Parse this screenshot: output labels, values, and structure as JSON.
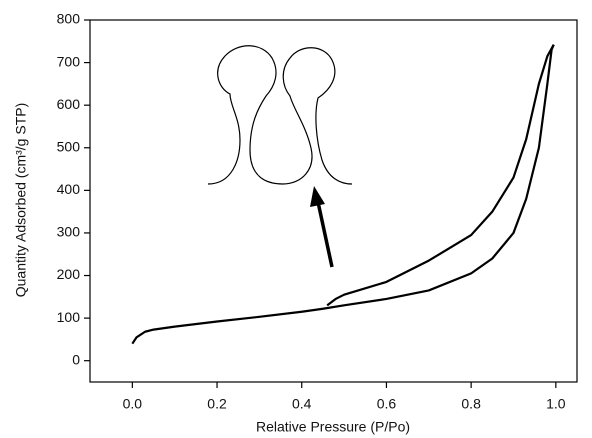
{
  "chart_data": {
    "type": "line",
    "xlabel": "Relative Pressure (P/Po)",
    "ylabel": "Quantity Adsorbed (cm³/g STP)",
    "xlim": [
      -0.1,
      1.05
    ],
    "ylim": [
      -50,
      800
    ],
    "xticks": [
      {
        "value": 0,
        "label": "0.0"
      },
      0.2,
      0.4,
      0.6,
      0.8,
      {
        "value": 1,
        "label": "1.0"
      }
    ],
    "yticks": [
      0,
      100,
      200,
      300,
      400,
      500,
      600,
      700,
      800
    ],
    "series": [
      {
        "color": "#000000",
        "x": [
          0.0,
          0.01,
          0.03,
          0.05,
          0.1,
          0.2,
          0.3,
          0.4,
          0.45,
          0.5,
          0.6,
          0.7,
          0.8,
          0.85,
          0.9,
          0.93,
          0.96,
          0.98,
          0.99,
          0.995
        ],
        "values": [
          40,
          55,
          68,
          73,
          80,
          92,
          103,
          115,
          122,
          130,
          145,
          165,
          205,
          240,
          300,
          380,
          500,
          650,
          730,
          742
        ]
      },
      {
        "color": "#000000",
        "x": [
          0.995,
          0.98,
          0.96,
          0.93,
          0.9,
          0.85,
          0.8,
          0.7,
          0.6,
          0.5,
          0.48,
          0.46
        ],
        "values": [
          742,
          715,
          650,
          520,
          430,
          350,
          295,
          235,
          185,
          155,
          145,
          130
        ]
      }
    ]
  }
}
